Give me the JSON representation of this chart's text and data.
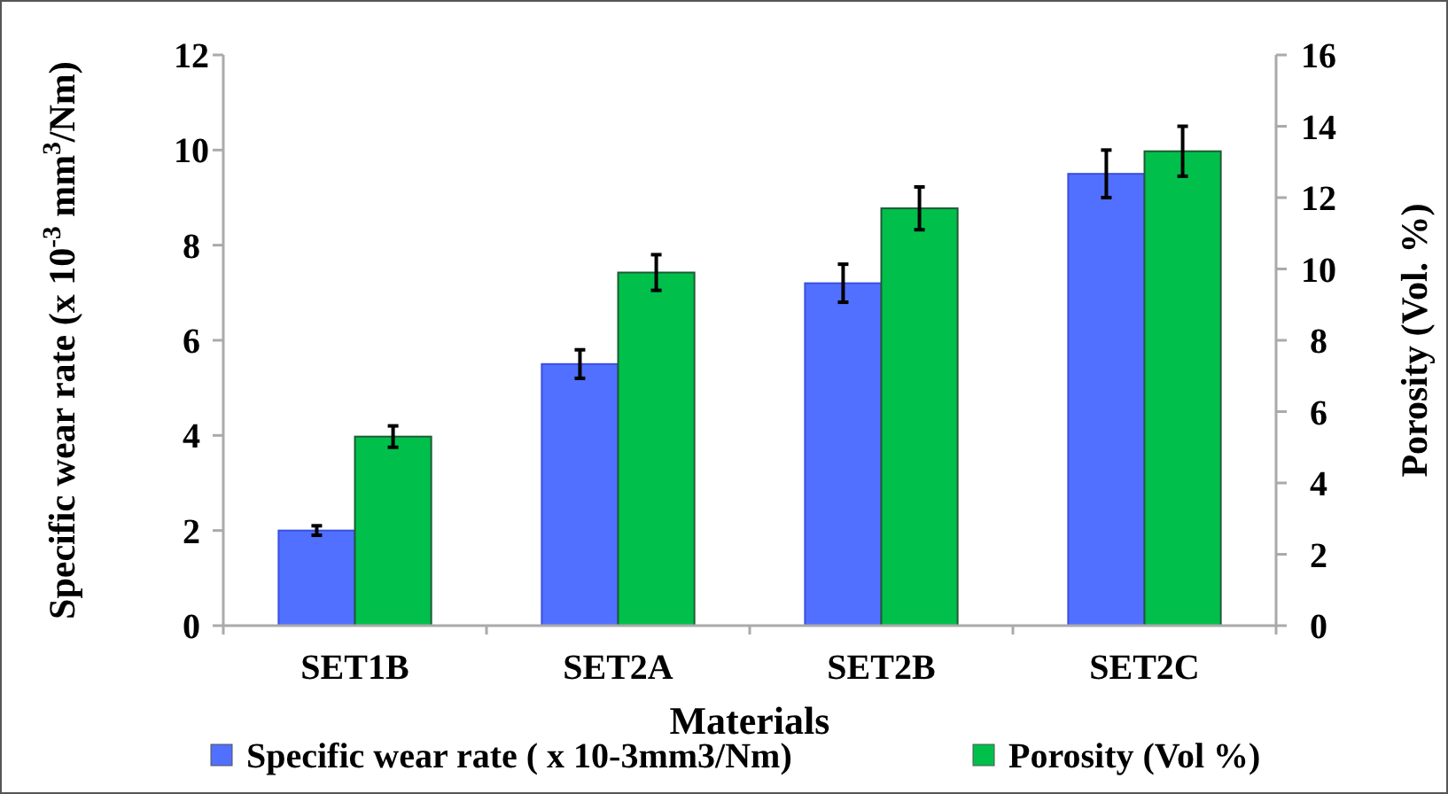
{
  "chart_data": {
    "type": "bar",
    "xlabel": "Materials",
    "ylabel": "Specific wear rate (x 10$^{-3}$ mm$^{3}$/Nm)",
    "y2label": "Porosity (Vol. %)",
    "categories": [
      "SET1B",
      "SET2A",
      "SET2B",
      "SET2C"
    ],
    "series": [
      {
        "name": "Specific wear rate ( x 10-3mm3/Nm)",
        "color": "#5170ff",
        "values": [
          2.0,
          5.5,
          7.2,
          9.5
        ],
        "errors": [
          0.1,
          0.3,
          0.4,
          0.5
        ]
      },
      {
        "name": "Porosity (Vol %)",
        "color": "#00c04b",
        "axis": "y2",
        "values": [
          5.3,
          9.9,
          11.7,
          13.3
        ],
        "errors": [
          0.3,
          0.5,
          0.6,
          0.7
        ]
      }
    ],
    "ylim": [
      0,
      12
    ],
    "yticks": [
      0,
      2,
      4,
      6,
      8,
      10,
      12
    ],
    "y2lim": [
      0,
      16
    ],
    "y2ticks": [
      0,
      2,
      4,
      6,
      8,
      10,
      12,
      14,
      16
    ],
    "grid": false,
    "legend": "bottom"
  }
}
